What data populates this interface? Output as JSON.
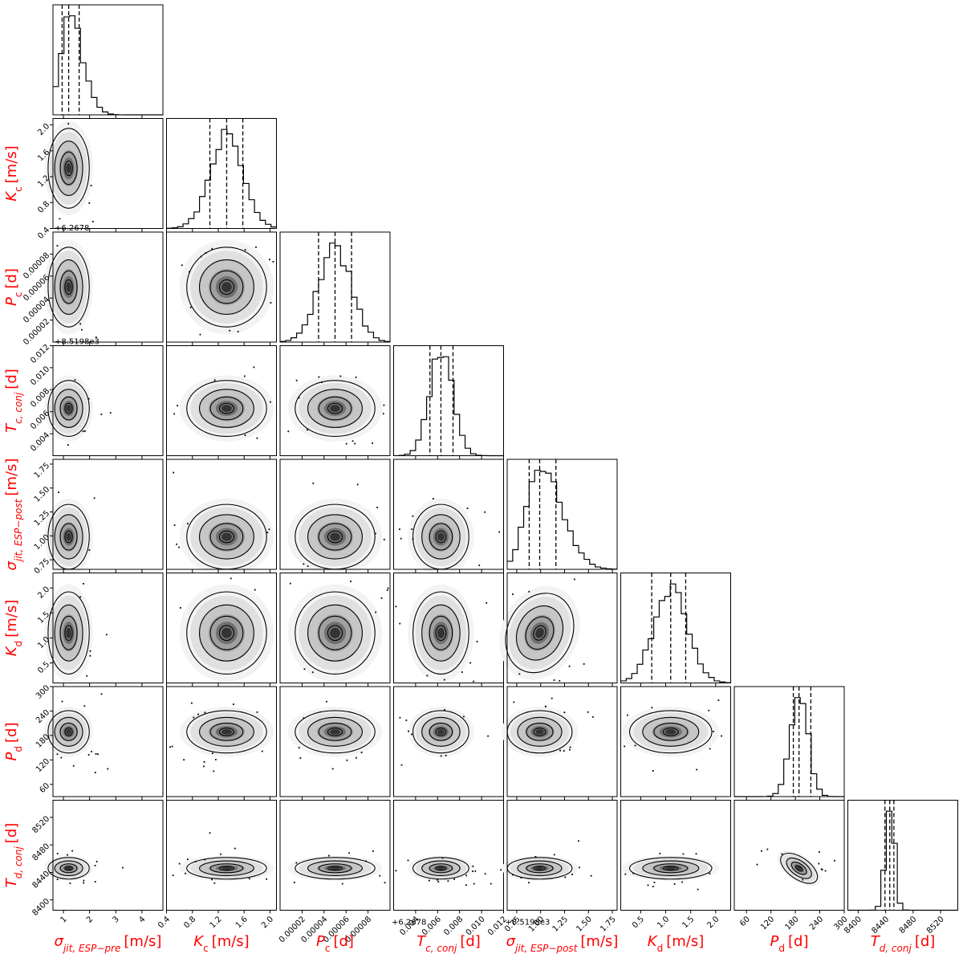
{
  "chart_data": {
    "type": "corner",
    "label_color": "#ff0000",
    "parameters": [
      {
        "sym": "σ",
        "sub": "jit, ESP−pre",
        "sub_italic": true,
        "unit": "[m/s]",
        "range": [
          0.6,
          4.8
        ],
        "ticks": [
          "1",
          "2",
          "3",
          "4"
        ],
        "tick_values": [
          1,
          2,
          3,
          4
        ],
        "offset": "",
        "quantiles": [
          0.95,
          1.2,
          1.6
        ]
      },
      {
        "sym": "K",
        "sub": "c",
        "sub_italic": false,
        "unit": "[m/s]",
        "range": [
          0.4,
          2.1
        ],
        "ticks": [
          "0.4",
          "0.8",
          "1.2",
          "1.6",
          "2.0"
        ],
        "tick_values": [
          0.4,
          0.8,
          1.2,
          1.6,
          2.0
        ],
        "offset": "",
        "quantiles": [
          1.07,
          1.33,
          1.58
        ]
      },
      {
        "sym": "P",
        "sub": "c",
        "sub_italic": false,
        "unit": "[d]",
        "range": [
          0.0,
          0.0001
        ],
        "ticks": [
          "0.00002",
          "0.00004",
          "0.00006",
          "0.00008"
        ],
        "tick_values": [
          2e-05,
          4e-05,
          6e-05,
          8e-05
        ],
        "offset": "+6.2678",
        "quantiles": [
          3.5e-05,
          5e-05,
          6.5e-05
        ]
      },
      {
        "sym": "T",
        "sub": "c, conj",
        "sub_italic": true,
        "unit": "[d]",
        "range": [
          0.002,
          0.012
        ],
        "ticks": [
          "0.004",
          "0.006",
          "0.008",
          "0.010",
          "0.012"
        ],
        "tick_values": [
          0.004,
          0.006,
          0.008,
          0.01,
          0.012
        ],
        "offset": "+8.5198e3",
        "quantiles": [
          0.0053,
          0.0063,
          0.0074
        ]
      },
      {
        "sym": "σ",
        "sub": "jit, ESP−post",
        "sub_italic": true,
        "unit": "[m/s]",
        "range": [
          0.65,
          1.8
        ],
        "ticks": [
          "0.75",
          "1.00",
          "1.25",
          "1.50",
          "1.75"
        ],
        "tick_values": [
          0.75,
          1.0,
          1.25,
          1.5,
          1.75
        ],
        "offset": "",
        "quantiles": [
          0.88,
          0.99,
          1.16
        ]
      },
      {
        "sym": "K",
        "sub": "d",
        "sub_italic": false,
        "unit": "[m/s]",
        "range": [
          0.1,
          2.3
        ],
        "ticks": [
          "0.5",
          "1.0",
          "1.5",
          "2.0"
        ],
        "tick_values": [
          0.5,
          1.0,
          1.5,
          2.0
        ],
        "offset": "",
        "quantiles": [
          0.72,
          1.1,
          1.4
        ]
      },
      {
        "sym": "P",
        "sub": "d",
        "sub_italic": false,
        "unit": "[d]",
        "range": [
          30,
          300
        ],
        "ticks": [
          "60",
          "120",
          "180",
          "240",
          "300"
        ],
        "tick_values": [
          60,
          120,
          180,
          240,
          300
        ],
        "offset": "",
        "quantiles": [
          175,
          189,
          218
        ]
      },
      {
        "sym": "T",
        "sub": "d, conj",
        "sub_italic": true,
        "unit": "[d]",
        "range": [
          8385,
          8545
        ],
        "ticks": [
          "8400",
          "8440",
          "8480",
          "8520"
        ],
        "tick_values": [
          8400,
          8440,
          8480,
          8520
        ],
        "offset": "",
        "quantiles": [
          8439,
          8446,
          8452
        ]
      }
    ]
  }
}
